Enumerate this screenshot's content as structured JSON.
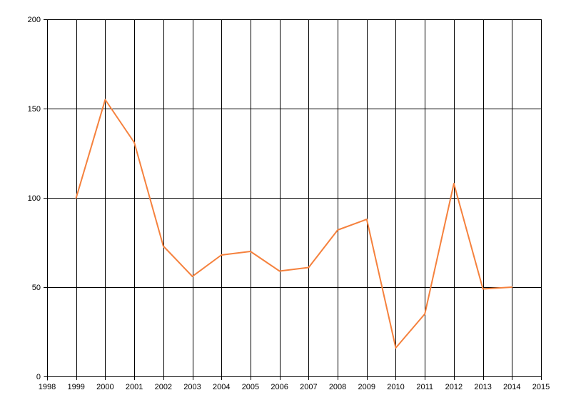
{
  "chart_data": {
    "type": "line",
    "title": "",
    "xlabel": "",
    "ylabel": "",
    "xlim": [
      1998,
      2015
    ],
    "ylim": [
      0,
      200
    ],
    "x_ticks": [
      1998,
      1999,
      2000,
      2001,
      2002,
      2003,
      2004,
      2005,
      2006,
      2007,
      2008,
      2009,
      2010,
      2011,
      2012,
      2013,
      2014,
      2015
    ],
    "y_ticks": [
      0,
      50,
      100,
      150,
      200
    ],
    "grid": true,
    "legend": "none",
    "series": [
      {
        "color": "#F5813D",
        "x": [
          1999,
          2000,
          2001,
          2002,
          2003,
          2004,
          2005,
          2006,
          2007,
          2008,
          2009,
          2010,
          2011,
          2012,
          2013,
          2014
        ],
        "y": [
          100,
          155,
          131,
          73,
          56,
          68,
          70,
          59,
          61,
          82,
          88,
          16,
          35,
          108,
          49,
          50
        ]
      }
    ]
  }
}
